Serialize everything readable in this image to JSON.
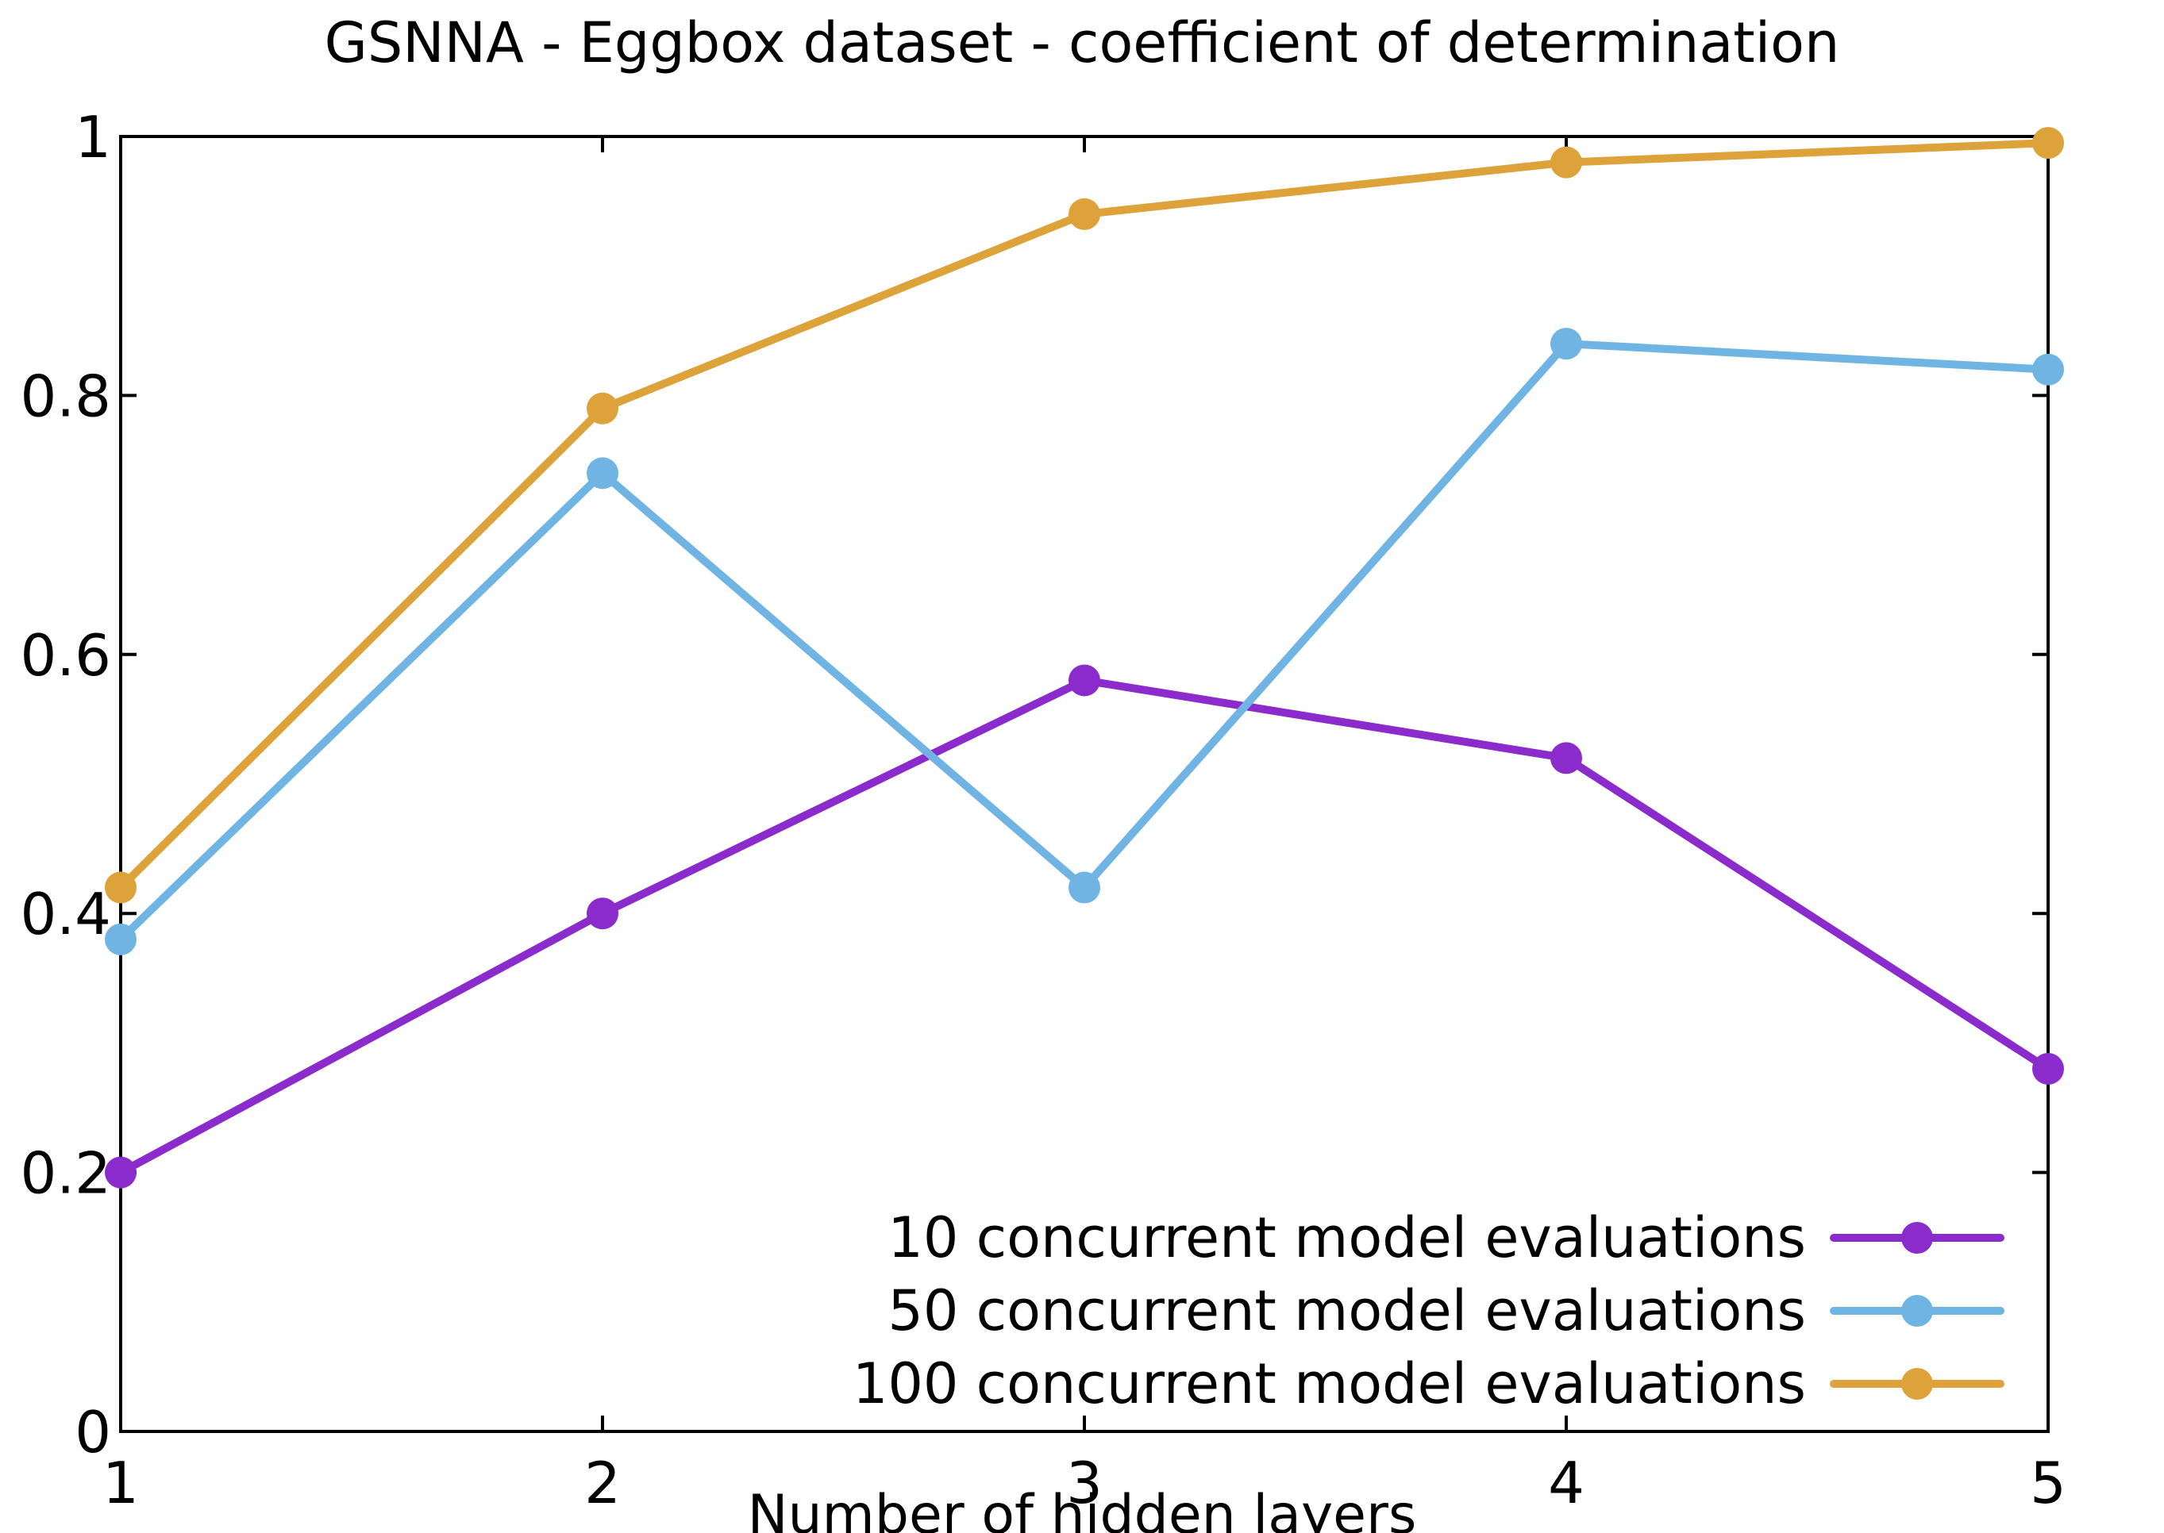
{
  "chart_data": {
    "type": "line",
    "title": "GSNNA - Eggbox dataset - coefficient of determination",
    "xlabel": "Number of hidden layers",
    "ylabel": "",
    "x": [
      1,
      2,
      3,
      4,
      5
    ],
    "xlim": [
      1,
      5
    ],
    "ylim": [
      0,
      1
    ],
    "xticks": [
      1,
      2,
      3,
      4,
      5
    ],
    "xtick_labels": [
      "1",
      "2",
      "3",
      "4",
      "5"
    ],
    "yticks": [
      0,
      0.2,
      0.4,
      0.6,
      0.8,
      1
    ],
    "ytick_labels": [
      "0",
      "0.2",
      "0.4",
      "0.6",
      "0.8",
      "1"
    ],
    "grid": false,
    "legend_position": "bottom-right",
    "series": [
      {
        "name": "10 concurrent model evaluations",
        "color": "#8b2bcc",
        "values": [
          0.2,
          0.4,
          0.58,
          0.52,
          0.28
        ]
      },
      {
        "name": "50 concurrent model evaluations",
        "color": "#6fb4e3",
        "values": [
          0.38,
          0.74,
          0.42,
          0.84,
          0.82
        ]
      },
      {
        "name": "100 concurrent model evaluations",
        "color": "#dea23a",
        "values": [
          0.42,
          0.79,
          0.94,
          0.98,
          0.995
        ]
      }
    ]
  }
}
